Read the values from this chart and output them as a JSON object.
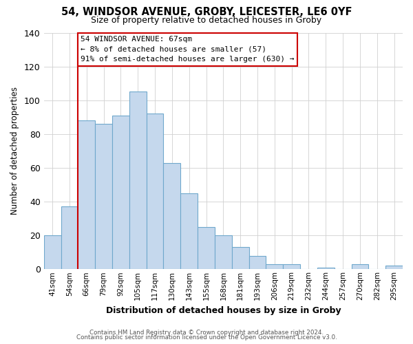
{
  "title_line1": "54, WINDSOR AVENUE, GROBY, LEICESTER, LE6 0YF",
  "title_line2": "Size of property relative to detached houses in Groby",
  "xlabel": "Distribution of detached houses by size in Groby",
  "ylabel": "Number of detached properties",
  "bar_labels": [
    "41sqm",
    "54sqm",
    "66sqm",
    "79sqm",
    "92sqm",
    "105sqm",
    "117sqm",
    "130sqm",
    "143sqm",
    "155sqm",
    "168sqm",
    "181sqm",
    "193sqm",
    "206sqm",
    "219sqm",
    "232sqm",
    "244sqm",
    "257sqm",
    "270sqm",
    "282sqm",
    "295sqm"
  ],
  "bar_heights": [
    20,
    37,
    88,
    86,
    91,
    105,
    92,
    63,
    45,
    25,
    20,
    13,
    8,
    3,
    3,
    0,
    1,
    0,
    3,
    0,
    2
  ],
  "bar_color": "#c5d8ed",
  "bar_edge_color": "#6fa8cc",
  "ylim": [
    0,
    140
  ],
  "yticks": [
    0,
    20,
    40,
    60,
    80,
    100,
    120,
    140
  ],
  "property_line_idx": 2,
  "annotation_title": "54 WINDSOR AVENUE: 67sqm",
  "annotation_line1": "← 8% of detached houses are smaller (57)",
  "annotation_line2": "91% of semi-detached houses are larger (630) →",
  "annotation_box_color": "#ffffff",
  "annotation_box_edge": "#cc0000",
  "property_line_color": "#cc0000",
  "footer_line1": "Contains HM Land Registry data © Crown copyright and database right 2024.",
  "footer_line2": "Contains public sector information licensed under the Open Government Licence v3.0.",
  "bg_color": "#ffffff"
}
